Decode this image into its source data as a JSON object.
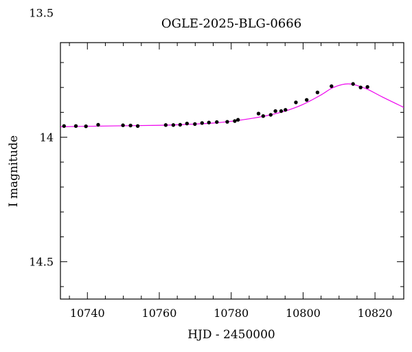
{
  "chart_data": {
    "type": "scatter",
    "title": "OGLE-2025-BLG-0666",
    "xlabel": "HJD - 2450000",
    "ylabel": "I magnitude",
    "xlim": [
      10732.5,
      10828
    ],
    "ylim": [
      14.65,
      13.62
    ],
    "y_inverted": true,
    "grid": false,
    "x_ticks": [
      10740,
      10760,
      10780,
      10800,
      10820
    ],
    "x_tick_labels": [
      "10740",
      "10760",
      "10780",
      "10800",
      "10820"
    ],
    "y_ticks": [
      13.5,
      14,
      14.5
    ],
    "y_tick_labels": [
      "13.5",
      "14",
      "14.5"
    ],
    "colors": {
      "points": "#000000",
      "model": "#ee00ee",
      "frame": "#000000"
    },
    "series": [
      {
        "kind": "points",
        "x": [
          10733.5,
          10736.8,
          10739.6,
          10743.0,
          10749.9,
          10752.0,
          10754.0,
          10761.8,
          10763.9,
          10765.8,
          10767.7,
          10769.9,
          10771.9,
          10773.8,
          10776.0,
          10778.9,
          10781.0,
          10781.9,
          10787.6,
          10788.9,
          10791.0,
          10792.3,
          10793.9,
          10795.1,
          10798.0,
          10801.0,
          10804.0,
          10807.9,
          10813.9,
          10816.0,
          10817.9
        ],
        "y": [
          13.955,
          13.955,
          13.956,
          13.95,
          13.952,
          13.953,
          13.955,
          13.951,
          13.951,
          13.95,
          13.945,
          13.947,
          13.943,
          13.941,
          13.939,
          13.938,
          13.935,
          13.93,
          13.905,
          13.915,
          13.91,
          13.895,
          13.895,
          13.89,
          13.86,
          13.85,
          13.82,
          13.795,
          13.786,
          13.8,
          13.798
        ]
      },
      {
        "kind": "model",
        "x": [
          10732.5,
          10740,
          10750,
          10760,
          10765,
          10770,
          10775,
          10780,
          10785,
          10790,
          10795,
          10800,
          10805,
          10808,
          10811,
          10813,
          10815,
          10818,
          10822,
          10828
        ],
        "y": [
          13.958,
          13.956,
          13.954,
          13.952,
          13.95,
          13.947,
          13.943,
          13.936,
          13.926,
          13.913,
          13.895,
          13.868,
          13.83,
          13.803,
          13.788,
          13.786,
          13.792,
          13.808,
          13.838,
          13.88
        ]
      }
    ]
  }
}
